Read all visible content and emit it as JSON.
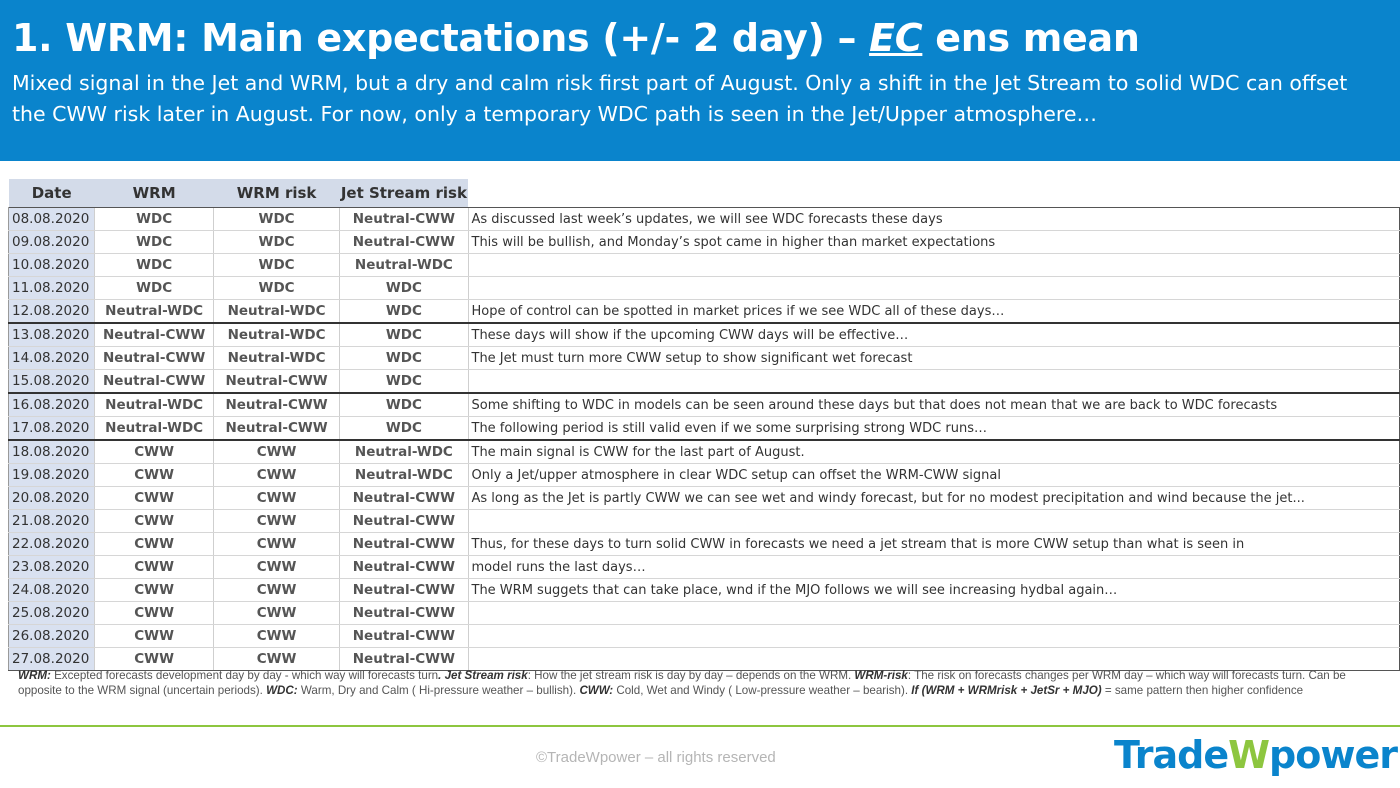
{
  "header": {
    "title_pre": "1. WRM: Main expectations (+/- 2 day) – ",
    "title_em": "EC",
    "title_post": " ens mean",
    "subtitle": "Mixed signal in the Jet and WRM, but a dry and calm risk first part of August. Only a shift in the Jet Stream to solid WDC can offset the CWW risk later in August. For now, only a temporary WDC path is seen in the Jet/Upper atmosphere…"
  },
  "table": {
    "columns": [
      "Date",
      "WRM",
      "WRM risk",
      "Jet Stream risk"
    ],
    "rows": [
      {
        "date": "08.08.2020",
        "wrm": "WDC",
        "wrm_risk": "WDC",
        "jet": "Neutral-CWW",
        "comment": "As discussed last week’s updates, we will see WDC forecasts these days"
      },
      {
        "date": "09.08.2020",
        "wrm": "WDC",
        "wrm_risk": "WDC",
        "jet": "Neutral-CWW",
        "comment": "This will be bullish, and Monday’s spot came in higher than market expectations"
      },
      {
        "date": "10.08.2020",
        "wrm": "WDC",
        "wrm_risk": "WDC",
        "jet": "Neutral-WDC",
        "comment": ""
      },
      {
        "date": "11.08.2020",
        "wrm": "WDC",
        "wrm_risk": "WDC",
        "jet": "WDC",
        "comment": ""
      },
      {
        "date": "12.08.2020",
        "wrm": "Neutral-WDC",
        "wrm_risk": "Neutral-WDC",
        "jet": "WDC",
        "comment": "Hope of control can be spotted in market prices if we see WDC all of these days…"
      },
      {
        "date": "13.08.2020",
        "wrm": "Neutral-CWW",
        "wrm_risk": "Neutral-WDC",
        "jet": "WDC",
        "comment": "These days will show if the upcoming CWW days will be effective…"
      },
      {
        "date": "14.08.2020",
        "wrm": "Neutral-CWW",
        "wrm_risk": "Neutral-WDC",
        "jet": "WDC",
        "comment": "The Jet must turn more CWW setup to show significant wet forecast"
      },
      {
        "date": "15.08.2020",
        "wrm": "Neutral-CWW",
        "wrm_risk": "Neutral-CWW",
        "jet": "WDC",
        "comment": ""
      },
      {
        "date": "16.08.2020",
        "wrm": "Neutral-WDC",
        "wrm_risk": "Neutral-CWW",
        "jet": "WDC",
        "comment": "Some shifting to WDC in models can be seen around these days but that does not mean that we are back to WDC forecasts"
      },
      {
        "date": "17.08.2020",
        "wrm": "Neutral-WDC",
        "wrm_risk": "Neutral-CWW",
        "jet": "WDC",
        "comment": "The following period is still valid even if we some surprising strong WDC runs…"
      },
      {
        "date": "18.08.2020",
        "wrm": "CWW",
        "wrm_risk": "CWW",
        "jet": "Neutral-WDC",
        "comment": "The main signal is CWW for the last part of August."
      },
      {
        "date": "19.08.2020",
        "wrm": "CWW",
        "wrm_risk": "CWW",
        "jet": "Neutral-WDC",
        "comment": "Only a Jet/upper atmosphere in clear WDC setup can offset the WRM-CWW signal"
      },
      {
        "date": "20.08.2020",
        "wrm": "CWW",
        "wrm_risk": "CWW",
        "jet": "Neutral-CWW",
        "comment": "As long as the Jet is partly CWW we can see wet and windy forecast, but for no modest precipitation and wind because the jet..."
      },
      {
        "date": "21.08.2020",
        "wrm": "CWW",
        "wrm_risk": "CWW",
        "jet": "Neutral-CWW",
        "comment": ""
      },
      {
        "date": "22.08.2020",
        "wrm": "CWW",
        "wrm_risk": "CWW",
        "jet": "Neutral-CWW",
        "comment": "Thus, for these days to turn solid CWW in forecasts we need a jet stream that is more CWW setup than what is seen in"
      },
      {
        "date": "23.08.2020",
        "wrm": "CWW",
        "wrm_risk": "CWW",
        "jet": "Neutral-CWW",
        "comment": "model runs the last days…"
      },
      {
        "date": "24.08.2020",
        "wrm": "CWW",
        "wrm_risk": "CWW",
        "jet": "Neutral-CWW",
        "comment": "The WRM suggets that can take place, wnd if the MJO follows we will see increasing hydbal again…"
      },
      {
        "date": "25.08.2020",
        "wrm": "CWW",
        "wrm_risk": "CWW",
        "jet": "Neutral-CWW",
        "comment": ""
      },
      {
        "date": "26.08.2020",
        "wrm": "CWW",
        "wrm_risk": "CWW",
        "jet": "Neutral-CWW",
        "comment": ""
      },
      {
        "date": "27.08.2020",
        "wrm": "CWW",
        "wrm_risk": "CWW",
        "jet": "Neutral-CWW",
        "comment": ""
      }
    ]
  },
  "legend": [
    {
      "b": "WRM:",
      "t": " Excepted forecasts development day by day - which way will forecasts turn"
    },
    {
      "b": ".  Jet Stream risk",
      "t": ": How the jet stream risk is day by day – depends on the WRM. "
    },
    {
      "b": "WRM-risk",
      "t": ": The risk on forecasts changes per WRM day – which way will forecasts turn. Can be opposite to the WRM signal (uncertain periods). "
    },
    {
      "b": "WDC:",
      "t": " Warm, Dry and Calm ( Hi-pressure weather – bullish). "
    },
    {
      "b": "CWW:",
      "t": " Cold, Wet and Windy ( Low-pressure weather – bearish). "
    },
    {
      "b": "If (WRM + WRMrisk + JetSr + MJO)",
      "t": " = same pattern then higher confidence"
    }
  ],
  "footer": {
    "copyright": "©TradeWpower – all rights reserved",
    "logo_a": "Trade",
    "logo_w": "W",
    "logo_b": "power"
  },
  "colors": {
    "header_blue": "#0a84cc",
    "wdc_green": "#5fbb2e",
    "cww_red": "#e3101c",
    "rule_green": "#8dc63f"
  }
}
